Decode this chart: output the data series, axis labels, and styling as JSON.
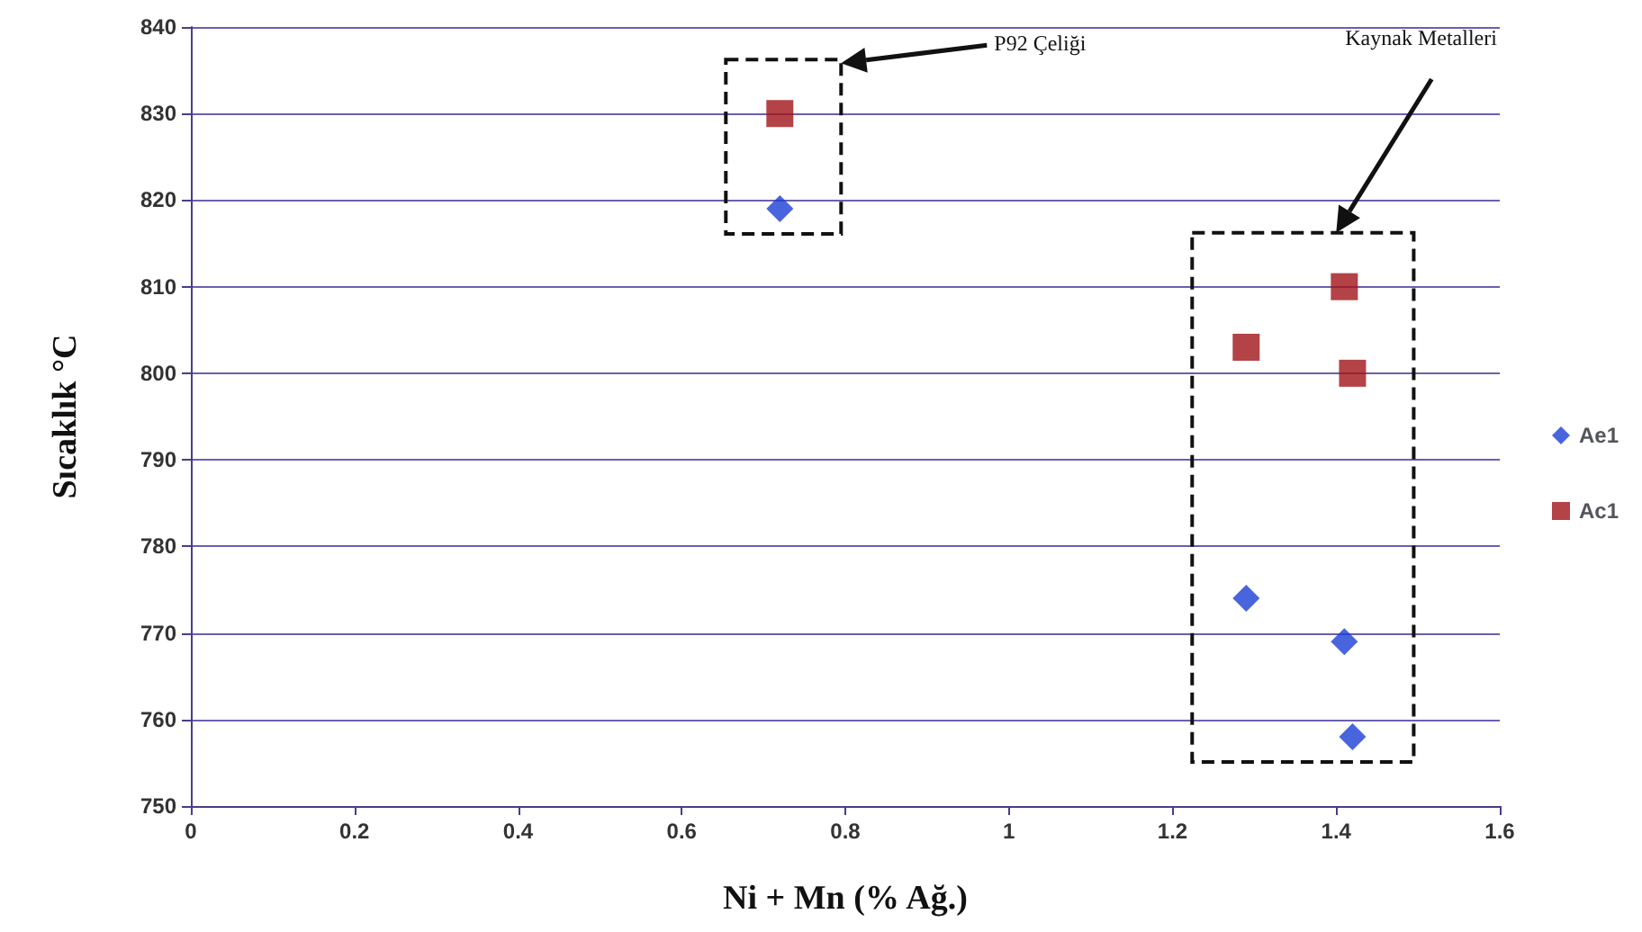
{
  "chart_data": {
    "type": "scatter",
    "xlabel": "Ni + Mn (% Ağ.)",
    "ylabel": "Sıcaklık °C",
    "xlim": [
      0,
      1.6
    ],
    "xticks": [
      0,
      0.2,
      0.4,
      0.6,
      0.8,
      1,
      1.2,
      1.4,
      1.6
    ],
    "ylim": [
      750,
      840
    ],
    "yticks": [
      750,
      760,
      770,
      780,
      790,
      800,
      810,
      820,
      830,
      840
    ],
    "grid": "y",
    "legend": "right",
    "series": [
      {
        "name": "Ae1",
        "color": "#1a3fd6",
        "marker": "diamond",
        "x": [
          0.72,
          1.29,
          1.41,
          1.42
        ],
        "values": [
          819,
          774,
          769,
          758
        ]
      },
      {
        "name": "Ac1",
        "color": "#a01418",
        "marker": "square",
        "x": [
          0.72,
          1.29,
          1.41,
          1.42
        ],
        "values": [
          830,
          803,
          810,
          800
        ]
      }
    ],
    "annotations": [
      "P92 Çeliği",
      "Kaynak Metalleri"
    ]
  }
}
